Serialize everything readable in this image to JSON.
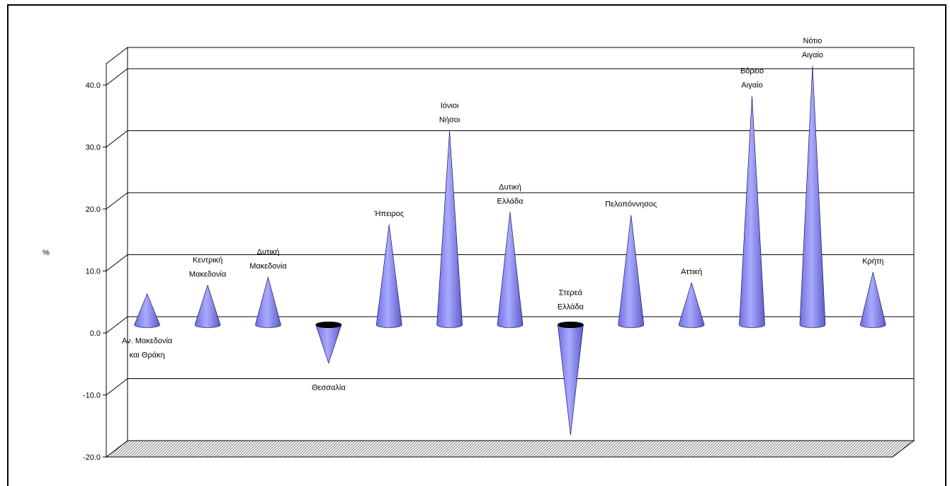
{
  "chart_data": {
    "type": "bar",
    "ylabel": "%",
    "ylim": [
      -20,
      40
    ],
    "yticks": [
      "-20.0",
      "-10.0",
      "0.0",
      "10.0",
      "20.0",
      "30.0",
      "40.0"
    ],
    "grid": true,
    "categories": [
      [
        "Αν. Μακεδονία",
        "και Θράκη"
      ],
      [
        "Κεντρική",
        "Μακεδονία"
      ],
      [
        "Δυτική",
        "Μακεδονία"
      ],
      [
        "Θεσσαλία"
      ],
      [
        "Ήπειρος"
      ],
      [
        "Ιόνιοι",
        "Νήσοι"
      ],
      [
        "Δυτική",
        "Ελλάδα"
      ],
      [
        "Στερεά",
        "Ελλάδα"
      ],
      [
        "Πελοπόννησος"
      ],
      [
        "Αττική"
      ],
      [
        "Βόρειο",
        "Αιγαίο"
      ],
      [
        "Νότιο",
        "Αιγαίο"
      ],
      [
        "Κρήτη"
      ]
    ],
    "values": [
      5.0,
      6.4,
      7.7,
      -6.2,
      16.2,
      31.3,
      18.2,
      -17.8,
      17.7,
      6.8,
      36.9,
      41.8,
      8.5
    ],
    "bar_color": "#9999ff"
  }
}
